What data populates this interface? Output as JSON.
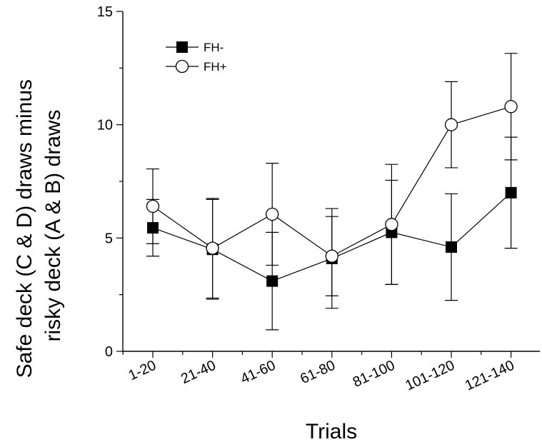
{
  "chart_data": {
    "type": "line",
    "title": "",
    "xlabel": "Trials",
    "ylabel_lines": [
      "Safe deck (C & D) draws minus",
      "risky deck (A & B) draws"
    ],
    "categories": [
      "1-20",
      "21-40",
      "41-60",
      "61-80",
      "81-100",
      "101-120",
      "121-140"
    ],
    "ylim": [
      0,
      15
    ],
    "yticks": [
      0,
      5,
      10,
      15
    ],
    "ytick_labels": [
      "0",
      "5",
      "10",
      "15"
    ],
    "legend_position": "top-left",
    "grid": false,
    "series": [
      {
        "name": "FH-",
        "marker": "filled-square",
        "color": "#000000",
        "values": [
          5.45,
          4.5,
          3.1,
          4.1,
          5.25,
          4.6,
          7.0
        ],
        "error": [
          1.25,
          2.2,
          2.15,
          2.2,
          2.3,
          2.35,
          2.45
        ]
      },
      {
        "name": "FH+",
        "marker": "open-circle",
        "color": "#000000",
        "values": [
          6.4,
          4.55,
          6.05,
          4.2,
          5.6,
          10.0,
          10.8
        ],
        "error": [
          1.65,
          2.2,
          2.25,
          1.75,
          2.65,
          1.9,
          2.35
        ]
      }
    ]
  }
}
